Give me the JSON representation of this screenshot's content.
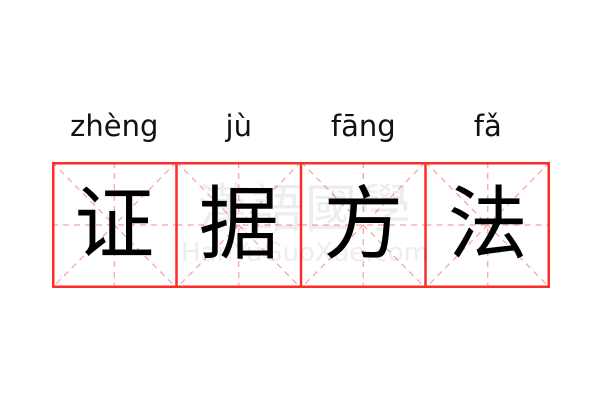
{
  "pinyin": [
    "zhèng",
    "jù",
    "fāng",
    "fǎ"
  ],
  "characters": [
    "证",
    "据",
    "方",
    "法"
  ],
  "watermark": {
    "chinese": "漢語國學",
    "latin": "HanYuGuoXue.com"
  },
  "colors": {
    "border": "#ff2a2a",
    "guide": "#f5a0a0",
    "text": "#000000"
  }
}
